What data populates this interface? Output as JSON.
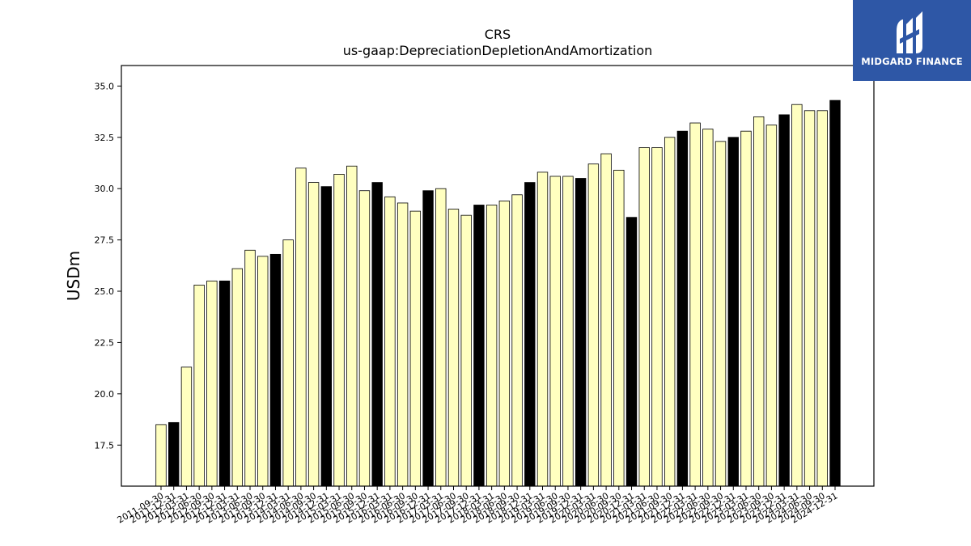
{
  "brand": {
    "name": "MIDGARD FINANCE",
    "bg_color": "#2e57a6"
  },
  "chart_data": {
    "type": "bar",
    "title": "CRS",
    "subtitle": "us-gaap:DepreciationDepletionAndAmortization",
    "xlabel": "",
    "ylabel": "USDm",
    "ylim": [
      15.5,
      36.0
    ],
    "yticks": [
      17.5,
      20.0,
      22.5,
      25.0,
      27.5,
      30.0,
      32.5,
      35.0
    ],
    "grid": false,
    "colors": {
      "default": "#ffffc0",
      "highlight": "#000000",
      "edge": "#000000"
    },
    "categories": [
      "2011-09-30",
      "2011-12-31",
      "2012-03-31",
      "2012-06-30",
      "2012-09-30",
      "2012-12-31",
      "2013-03-31",
      "2013-06-30",
      "2013-09-30",
      "2013-12-31",
      "2014-03-31",
      "2014-06-30",
      "2014-09-30",
      "2014-12-31",
      "2015-03-31",
      "2015-06-30",
      "2015-09-30",
      "2015-12-31",
      "2016-03-31",
      "2016-06-30",
      "2016-09-30",
      "2016-12-31",
      "2017-03-31",
      "2017-06-30",
      "2017-09-30",
      "2017-12-31",
      "2018-03-31",
      "2018-06-30",
      "2018-09-30",
      "2018-12-31",
      "2019-03-31",
      "2019-06-30",
      "2019-09-30",
      "2019-12-31",
      "2020-03-31",
      "2020-06-30",
      "2020-09-30",
      "2020-12-31",
      "2021-03-31",
      "2021-06-30",
      "2021-09-30",
      "2021-12-31",
      "2022-03-31",
      "2022-06-30",
      "2022-09-30",
      "2022-12-31",
      "2023-03-31",
      "2023-06-30",
      "2023-09-30",
      "2023-12-31",
      "2024-03-31",
      "2024-06-30",
      "2024-09-30",
      "2024-12-31"
    ],
    "values": [
      18.5,
      18.6,
      21.3,
      25.3,
      25.5,
      25.5,
      26.1,
      27.0,
      26.7,
      26.8,
      27.5,
      31.0,
      30.3,
      30.1,
      30.7,
      31.1,
      29.9,
      30.3,
      29.6,
      29.3,
      28.9,
      29.9,
      30.0,
      29.0,
      28.7,
      29.2,
      29.2,
      29.4,
      29.7,
      30.3,
      30.8,
      30.6,
      30.6,
      30.5,
      31.2,
      31.7,
      30.9,
      28.6,
      32.0,
      32.0,
      32.5,
      32.8,
      33.2,
      32.9,
      32.3,
      32.5,
      32.8,
      33.5,
      33.1,
      33.6,
      34.1,
      33.8,
      33.8,
      34.3
    ],
    "highlight": [
      false,
      true,
      false,
      false,
      false,
      true,
      false,
      false,
      false,
      true,
      false,
      false,
      false,
      true,
      false,
      false,
      false,
      true,
      false,
      false,
      false,
      true,
      false,
      false,
      false,
      true,
      false,
      false,
      false,
      true,
      false,
      false,
      false,
      true,
      false,
      false,
      false,
      true,
      false,
      false,
      false,
      true,
      false,
      false,
      false,
      true,
      false,
      false,
      false,
      true,
      false,
      false,
      false,
      true
    ]
  }
}
